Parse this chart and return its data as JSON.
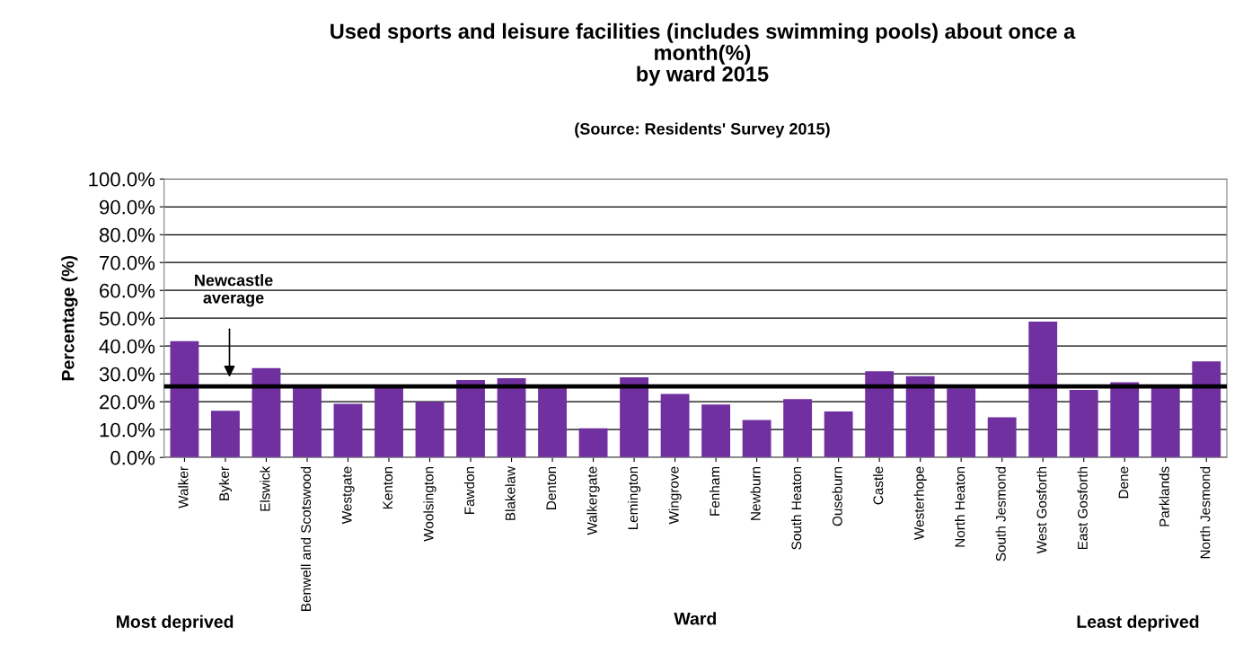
{
  "chart_data": {
    "type": "bar",
    "title": "Used sports and leisure facilities (includes swimming pools) about once a\nmonth(%)\nby ward 2015",
    "subtitle": "(Source: Residents' Survey 2015)",
    "xlabel": "Ward",
    "ylabel": "Percentage (%)",
    "categories": [
      "Walker",
      "Byker",
      "Elswick",
      "Benwell and Scotswood",
      "Westgate",
      "Kenton",
      "Woolsington",
      "Fawdon",
      "Blakelaw",
      "Denton",
      "Walkergate",
      "Lemington",
      "Wingrove",
      "Fenham",
      "Newburn",
      "South Heaton",
      "Ouseburn",
      "Castle",
      "Westerhope",
      "North Heaton",
      "South Jesmond",
      "West Gosforth",
      "East Gosforth",
      "Dene",
      "Parklands",
      "North Jesmond"
    ],
    "values": [
      41.8,
      16.8,
      32.1,
      25.5,
      19.3,
      25.0,
      20.0,
      27.8,
      28.5,
      25.5,
      10.5,
      28.8,
      22.8,
      19.0,
      13.5,
      21.0,
      16.5,
      31.0,
      29.2,
      24.8,
      14.4,
      48.8,
      24.3,
      27.0,
      25.5,
      34.5
    ],
    "color": "#7030a0",
    "ylim": [
      0,
      100
    ],
    "yticks": [
      {
        "value": 0,
        "label": "0.0%"
      },
      {
        "value": 10,
        "label": "10.0%"
      },
      {
        "value": 20,
        "label": "20.0%"
      },
      {
        "value": 30,
        "label": "30.0%"
      },
      {
        "value": 40,
        "label": "40.0%"
      },
      {
        "value": 50,
        "label": "50.0%"
      },
      {
        "value": 60,
        "label": "60.0%"
      },
      {
        "value": 70,
        "label": "70.0%"
      },
      {
        "value": 80,
        "label": "80.0%"
      },
      {
        "value": 90,
        "label": "90.0%"
      },
      {
        "value": 100,
        "label": "100.0%"
      }
    ],
    "ref_lines": [
      {
        "axis": "y",
        "value": 25.5,
        "color": "#000000"
      }
    ],
    "annotations": [
      "Newcastle\naverage",
      "Most deprived",
      "Least deprived"
    ],
    "grid": "y",
    "legend": false
  }
}
